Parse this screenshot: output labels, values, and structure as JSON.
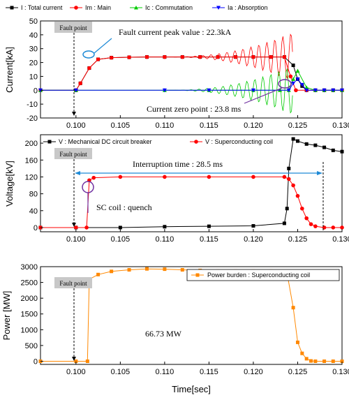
{
  "chart_data": [
    {
      "type": "line",
      "ylabel": "Current[kA]",
      "xlim": [
        0.096,
        0.13
      ],
      "ylim": [
        -20,
        50
      ],
      "yticks": [
        -20,
        -10,
        0,
        10,
        20,
        30,
        40,
        50
      ],
      "xticks": [
        "0.100",
        "0.105",
        "0.110",
        "0.115",
        "0.120",
        "0.125",
        "0.130"
      ],
      "legend_position": "top",
      "series": [
        {
          "name": "I : Total current",
          "color": "#000000",
          "marker": "square",
          "x": [
            0.096,
            0.1,
            0.1005,
            0.1015,
            0.1025,
            0.104,
            0.106,
            0.108,
            0.11,
            0.112,
            0.114,
            0.116,
            0.118,
            0.12,
            0.122,
            0.1235,
            0.1245,
            0.125,
            0.1255,
            0.126,
            0.127,
            0.128,
            0.129,
            0.13
          ],
          "y": [
            0,
            0,
            5,
            16,
            22.3,
            23.5,
            23.8,
            24,
            24,
            24,
            24,
            24,
            24,
            24,
            24,
            24,
            18,
            8,
            3,
            0,
            0,
            0,
            0,
            0
          ]
        },
        {
          "name": "Im : Main",
          "color": "#ff0000",
          "marker": "circle",
          "x": [
            0.096,
            0.1,
            0.1005,
            0.1015,
            0.1025,
            0.104,
            0.106,
            0.108,
            0.11,
            0.112,
            0.114,
            0.116,
            0.118,
            0.12,
            0.122,
            0.1235,
            0.1242,
            0.1248,
            0.126,
            0.127,
            0.128,
            0.129,
            0.13
          ],
          "y": [
            0,
            0,
            5,
            16,
            22.3,
            23.5,
            23.8,
            24,
            24,
            24,
            24,
            24,
            24,
            24,
            24,
            24,
            10,
            0,
            0,
            0,
            0,
            0,
            0
          ]
        },
        {
          "name": "Ic : Commutation",
          "color": "#00cc00",
          "marker": "triangle-up",
          "x": [
            0.096,
            0.1,
            0.11,
            0.115,
            0.12,
            0.123,
            0.124,
            0.1245,
            0.125,
            0.126,
            0.127,
            0.128,
            0.129,
            0.13
          ],
          "y": [
            0,
            0,
            0,
            0,
            0,
            0,
            0,
            8,
            14,
            2,
            0,
            0,
            0,
            0
          ]
        },
        {
          "name": "Ia : Absorption",
          "color": "#0000ff",
          "marker": "triangle-down",
          "x": [
            0.096,
            0.1,
            0.11,
            0.115,
            0.12,
            0.124,
            0.1245,
            0.125,
            0.1255,
            0.126,
            0.127,
            0.128,
            0.129,
            0.13
          ],
          "y": [
            0,
            0,
            0,
            0,
            0,
            0,
            5,
            8,
            4,
            0,
            0,
            0,
            0,
            0
          ]
        }
      ],
      "annotations": [
        "Fault point",
        "Fault current peak value : 22.3kA",
        "Current zero point : 23.8 ms"
      ]
    },
    {
      "type": "line",
      "ylabel": "Voltage[kV]",
      "xlim": [
        0.096,
        0.13
      ],
      "ylim": [
        -10,
        220
      ],
      "yticks": [
        0,
        40,
        80,
        120,
        160,
        200
      ],
      "xticks": [
        "0.100",
        "0.105",
        "0.110",
        "0.115",
        "0.120",
        "0.125",
        "0.130"
      ],
      "legend_position": "top",
      "series": [
        {
          "name": "V : Mechanical DC circuit breaker",
          "color": "#000000",
          "marker": "square",
          "x": [
            0.096,
            0.1,
            0.105,
            0.11,
            0.115,
            0.12,
            0.1235,
            0.1238,
            0.124,
            0.1245,
            0.125,
            0.126,
            0.127,
            0.128,
            0.129,
            0.13
          ],
          "y": [
            0,
            0,
            0,
            2,
            3,
            4,
            10,
            45,
            140,
            210,
            205,
            198,
            195,
            190,
            183,
            180
          ]
        },
        {
          "name": "V : Superconducting coil",
          "color": "#ff0000",
          "marker": "circle",
          "x": [
            0.096,
            0.1,
            0.1012,
            0.1015,
            0.102,
            0.105,
            0.11,
            0.115,
            0.12,
            0.1235,
            0.124,
            0.1245,
            0.125,
            0.1255,
            0.126,
            0.1265,
            0.127,
            0.128,
            0.129,
            0.13
          ],
          "y": [
            0,
            0,
            0,
            112,
            118,
            120,
            120,
            120,
            120,
            120,
            115,
            100,
            75,
            45,
            22,
            8,
            3,
            0,
            0,
            0
          ]
        }
      ],
      "annotations": [
        "Fault point",
        "Interruption time : 28.5 ms",
        "SC coil : quench"
      ]
    },
    {
      "type": "line",
      "ylabel": "Power [MW]",
      "xlabel": "Time[sec]",
      "xlim": [
        0.096,
        0.13
      ],
      "ylim": [
        -100,
        3000
      ],
      "yticks": [
        0,
        500,
        1000,
        1500,
        2000,
        2500,
        3000
      ],
      "xticks": [
        "0.100",
        "0.105",
        "0.110",
        "0.115",
        "0.120",
        "0.125",
        "0.130"
      ],
      "legend_position": "top-right",
      "series": [
        {
          "name": "Power burden : Superconducting coil",
          "color": "#ff8800",
          "marker": "square",
          "x": [
            0.096,
            0.1,
            0.1013,
            0.1015,
            0.1025,
            0.104,
            0.106,
            0.108,
            0.11,
            0.112,
            0.114,
            0.116,
            0.118,
            0.12,
            0.122,
            0.1238,
            0.1245,
            0.125,
            0.1255,
            0.126,
            0.1265,
            0.127,
            0.128,
            0.129,
            0.13
          ],
          "y": [
            0,
            0,
            0,
            2600,
            2750,
            2850,
            2900,
            2930,
            2920,
            2900,
            2880,
            2860,
            2860,
            2860,
            2860,
            2800,
            1700,
            600,
            250,
            80,
            10,
            0,
            0,
            0,
            0
          ]
        }
      ],
      "annotations": [
        "Fault point",
        "66.73 MW"
      ]
    }
  ]
}
